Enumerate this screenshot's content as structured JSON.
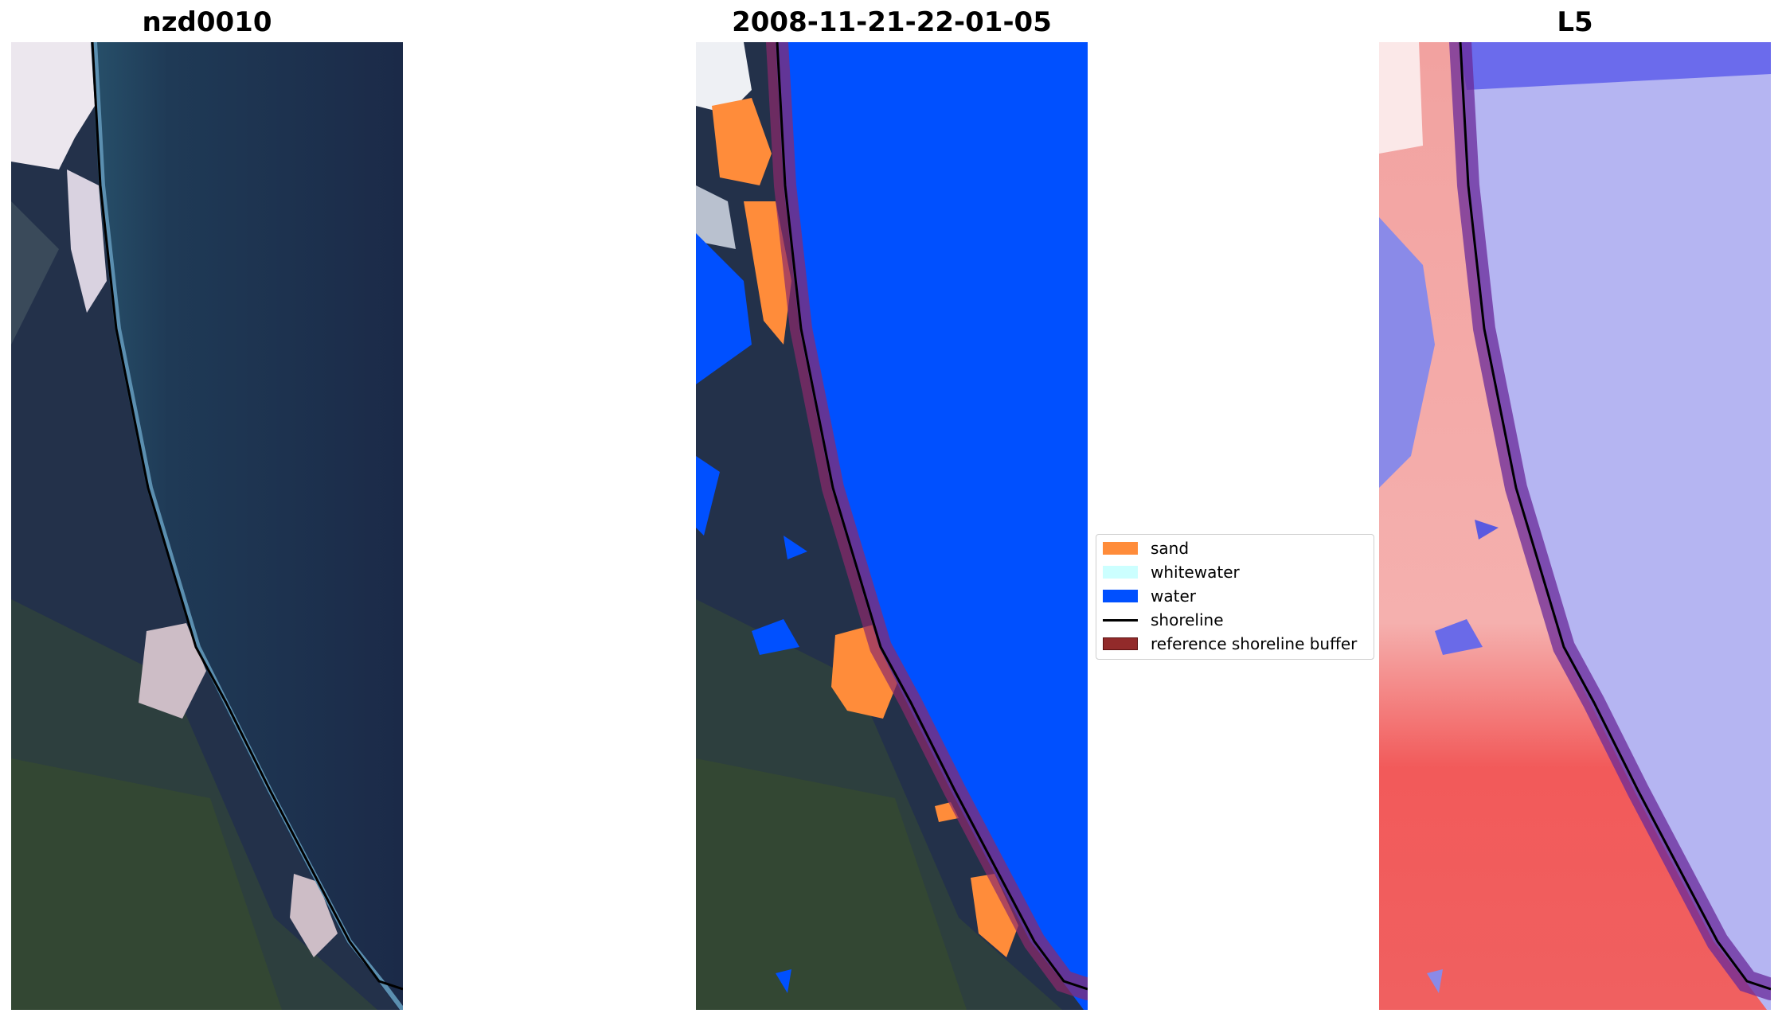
{
  "panels": [
    {
      "title": "nzd0010"
    },
    {
      "title": "2008-11-21-22-01-05"
    },
    {
      "title": "L5"
    }
  ],
  "legend": {
    "items": [
      {
        "label": "sand",
        "color": "#ff8c3a",
        "kind": "patch"
      },
      {
        "label": "whitewater",
        "color": "#ccffff",
        "kind": "patch"
      },
      {
        "label": "water",
        "color": "#0050ff",
        "kind": "patch"
      },
      {
        "label": "shoreline",
        "color": "#000000",
        "kind": "line"
      },
      {
        "label": "reference shoreline buffer",
        "color": "#922a2a",
        "kind": "patch"
      }
    ]
  }
}
